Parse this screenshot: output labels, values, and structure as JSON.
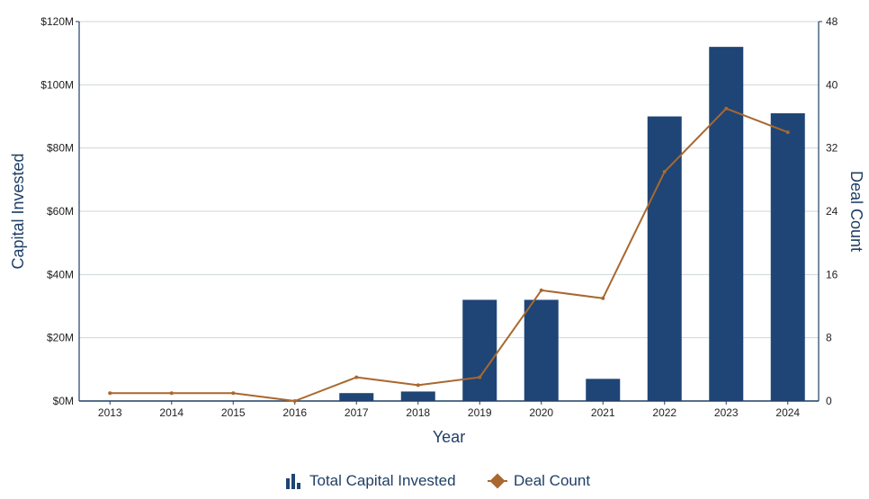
{
  "chart_data": {
    "type": "bar",
    "title": "",
    "categories": [
      "2013",
      "2014",
      "2015",
      "2016",
      "2017",
      "2018",
      "2019",
      "2020",
      "2021",
      "2022",
      "2023",
      "2024"
    ],
    "series": [
      {
        "name": "Total Capital Invested",
        "type": "bar",
        "axis": "left",
        "values": [
          0,
          0,
          0,
          0,
          2.5,
          3,
          32,
          32,
          7,
          90,
          112,
          91
        ]
      },
      {
        "name": "Deal Count",
        "type": "line",
        "axis": "right",
        "values": [
          1,
          1,
          1,
          0,
          3,
          2,
          3,
          14,
          13,
          29,
          37,
          34
        ]
      }
    ],
    "xlabel": "Year",
    "ylabel": "Capital Invested",
    "y2label": "Deal Count",
    "ylim": [
      0,
      120
    ],
    "y2lim": [
      0,
      48
    ],
    "y_ticks": [
      "$0M",
      "$20M",
      "$40M",
      "$60M",
      "$80M",
      "$100M",
      "$120M"
    ],
    "y2_ticks": [
      "0",
      "8",
      "16",
      "24",
      "32",
      "40",
      "48"
    ],
    "grid": true,
    "legend_position": "bottom-center",
    "colors": {
      "bar": "#1e4575",
      "line": "#a8682f",
      "axis": "#1f3f66",
      "grid": "#cfd4da"
    }
  }
}
